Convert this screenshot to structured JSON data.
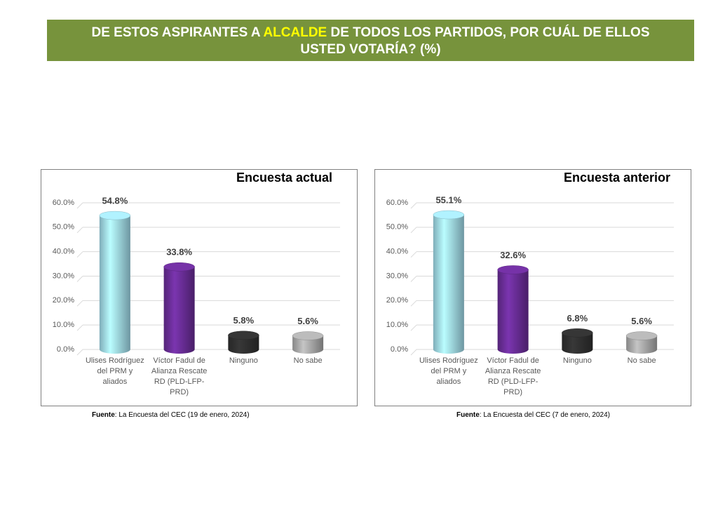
{
  "header": {
    "title_before": "DE ESTOS ASPIRANTES A",
    "title_highlight": "ALCALDE",
    "title_after": "DE TODOS LOS PARTIDOS, POR CUÁL DE ELLOS USTED VOTARÍA? (%)"
  },
  "chart_data": [
    {
      "type": "bar",
      "title": "Encuesta actual",
      "categories": [
        "Ulises Rodríguez del PRM y aliados",
        "Víctor Fadul de Alianza Rescate RD (PLD-LFP-PRD)",
        "Ninguno",
        "No sabe"
      ],
      "values": [
        54.8,
        33.8,
        5.8,
        5.6
      ],
      "value_labels": [
        "54.8%",
        "33.8%",
        "5.8%",
        "5.6%"
      ],
      "colors": [
        "#a9e6f7",
        "#7030a0",
        "#333333",
        "#b3b3b3"
      ],
      "ylim": [
        0,
        60
      ],
      "yticks": [
        {
          "value": 0,
          "label": "0.0%"
        },
        {
          "value": 10,
          "label": "10.0%"
        },
        {
          "value": 20,
          "label": "20.0%"
        },
        {
          "value": 30,
          "label": "30.0%"
        },
        {
          "value": 40,
          "label": "40.0%"
        },
        {
          "value": 50,
          "label": "50.0%"
        },
        {
          "value": 60,
          "label": "60.0%"
        }
      ],
      "grid": true,
      "source_label": "Fuente",
      "source_text": ": La Encuesta del CEC (19 de enero, 2024)"
    },
    {
      "type": "bar",
      "title": "Encuesta anterior",
      "categories": [
        "Ulises Rodríguez del PRM y aliados",
        "Víctor Fadul de Alianza Rescate RD (PLD-LFP-PRD)",
        "Ninguno",
        "No sabe"
      ],
      "values": [
        55.1,
        32.6,
        6.8,
        5.6
      ],
      "value_labels": [
        "55.1%",
        "32.6%",
        "6.8%",
        "5.6%"
      ],
      "colors": [
        "#a9e6f7",
        "#7030a0",
        "#333333",
        "#b3b3b3"
      ],
      "ylim": [
        0,
        60
      ],
      "yticks": [
        {
          "value": 0,
          "label": "0.0%"
        },
        {
          "value": 10,
          "label": "10.0%"
        },
        {
          "value": 20,
          "label": "20.0%"
        },
        {
          "value": 30,
          "label": "30.0%"
        },
        {
          "value": 40,
          "label": "40.0%"
        },
        {
          "value": 50,
          "label": "50.0%"
        },
        {
          "value": 60,
          "label": "60.0%"
        }
      ],
      "grid": true,
      "source_label": "Fuente",
      "source_text": ": La Encuesta del CEC (7 de enero, 2024)"
    }
  ]
}
